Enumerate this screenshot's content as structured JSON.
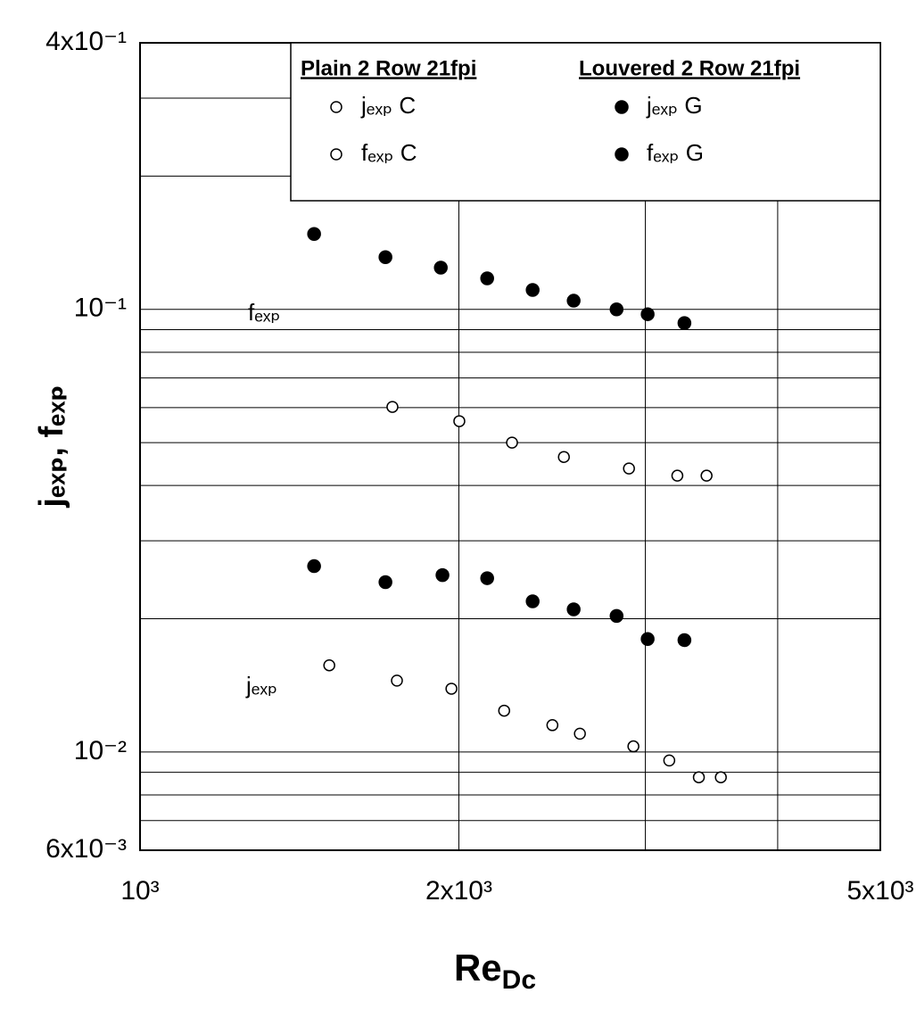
{
  "chart_data": {
    "type": "scatter",
    "x_label": {
      "text": "Re",
      "subscript": "Dc"
    },
    "y_label": "jₑₓₚ, fₑₓₚ",
    "log_x": true,
    "log_y": true,
    "xlim": [
      1000,
      5000
    ],
    "ylim": [
      0.006,
      0.4
    ],
    "xticks": [
      {
        "value": 1000,
        "label": "10³"
      },
      {
        "value": 2000,
        "label": "2x10³"
      },
      {
        "value": 5000,
        "label": "5x10³"
      }
    ],
    "yticks": [
      {
        "value": 0.4,
        "label": "4x10⁻¹"
      },
      {
        "value": 0.1,
        "label": "10⁻¹"
      },
      {
        "value": 0.01,
        "label": "10⁻²"
      },
      {
        "value": 0.006,
        "label": "6x10⁻³"
      }
    ],
    "x_gridlines": [
      3000,
      4000
    ],
    "y_gridlines": [
      0.3,
      0.2,
      0.09,
      0.08,
      0.07,
      0.06,
      0.05,
      0.04,
      0.03,
      0.02,
      0.009,
      0.008,
      0.007
    ],
    "legend_titles": [
      "Plain 2 Row 21fpi",
      "Louvered  2 Row 21fpi"
    ],
    "annotations": [
      "fₑₓₚ",
      "jₑₓₚ"
    ],
    "series": [
      {
        "name": "jₑₓₚ C",
        "marker": "open",
        "color": "#000000",
        "x": [
          1509,
          1748,
          1968,
          2207,
          2451,
          2602,
          2923,
          3160,
          3370,
          3535
        ],
        "values": [
          0.0157,
          0.0145,
          0.0139,
          0.0124,
          0.0115,
          0.011,
          0.0103,
          0.00957,
          0.00877,
          0.00877
        ]
      },
      {
        "name": "fₑₓₚ C",
        "marker": "open",
        "color": "#000000",
        "x": [
          1731,
          2002,
          2245,
          2513,
          2895,
          3216,
          3427
        ],
        "values": [
          0.0602,
          0.0559,
          0.05,
          0.0464,
          0.0437,
          0.0421,
          0.0421
        ]
      },
      {
        "name": "jₑₓₚ G",
        "marker": "filled",
        "color": "#000000",
        "x": [
          1460,
          1705,
          1930,
          2127,
          2348,
          2567,
          2818,
          3015,
          3266
        ],
        "values": [
          0.0263,
          0.0242,
          0.0251,
          0.0247,
          0.0219,
          0.021,
          0.0203,
          0.018,
          0.0179
        ]
      },
      {
        "name": "fₑₓₚ G",
        "marker": "filled",
        "color": "#000000",
        "x": [
          1460,
          1705,
          1923,
          2127,
          2348,
          2567,
          2818,
          3015,
          3266
        ],
        "values": [
          0.148,
          0.1312,
          0.1242,
          0.1175,
          0.1106,
          0.1046,
          0.1,
          0.0975,
          0.0931
        ]
      }
    ]
  }
}
